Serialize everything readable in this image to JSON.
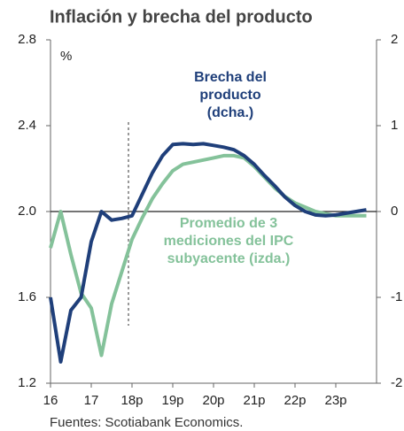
{
  "chart_data": {
    "type": "line",
    "title": "Inflación y brecha del producto",
    "y_unit": "%",
    "source": "Fuentes: Scotiabank Economics.",
    "x": [
      2016,
      2016.25,
      2016.5,
      2016.75,
      2017,
      2017.25,
      2017.5,
      2017.75,
      2018,
      2018.25,
      2018.5,
      2018.75,
      2019,
      2019.25,
      2019.5,
      2019.75,
      2020,
      2020.25,
      2020.5,
      2020.75,
      2021,
      2021.25,
      2021.5,
      2021.75,
      2022,
      2022.25,
      2022.5,
      2022.75,
      2023,
      2023.25,
      2023.5,
      2023.75
    ],
    "xlim": [
      2016,
      2024
    ],
    "xticks": [
      {
        "value": 2016,
        "label": "16"
      },
      {
        "value": 2017,
        "label": "17"
      },
      {
        "value": 2018,
        "label": "18p"
      },
      {
        "value": 2019,
        "label": "19p"
      },
      {
        "value": 2020,
        "label": "20p"
      },
      {
        "value": 2021,
        "label": "21p"
      },
      {
        "value": 2022,
        "label": "22p"
      },
      {
        "value": 2023,
        "label": "23p"
      }
    ],
    "ylim": [
      1.2,
      2.8
    ],
    "yticks": [
      1.2,
      1.6,
      {
        "value": 2,
        "label": "2.0"
      },
      2.4,
      2.8
    ],
    "y2lim": [
      -2,
      2
    ],
    "y2ticks": [
      -2,
      -1,
      0,
      1,
      2
    ],
    "series": [
      {
        "name": [
          "Promedio de 3",
          "mediciones del IPC",
          "subyacente (izda.)"
        ],
        "color": "#84c29a",
        "axis": "y",
        "values": [
          1.83,
          2.0,
          1.8,
          1.62,
          1.55,
          1.33,
          1.57,
          1.72,
          1.87,
          1.97,
          2.06,
          2.13,
          2.19,
          2.22,
          2.23,
          2.24,
          2.25,
          2.26,
          2.26,
          2.25,
          2.21,
          2.16,
          2.11,
          2.07,
          2.04,
          2.02,
          2.0,
          1.99,
          1.98,
          1.98,
          1.98,
          1.98
        ]
      },
      {
        "name": [
          "Brecha del",
          "producto",
          "(dcha.)"
        ],
        "color": "#1f3f7a",
        "axis": "y2",
        "values": [
          -1.0,
          -1.75,
          -1.15,
          -1.0,
          -0.35,
          0.0,
          -0.1,
          -0.08,
          -0.05,
          0.2,
          0.45,
          0.65,
          0.78,
          0.79,
          0.78,
          0.79,
          0.77,
          0.75,
          0.72,
          0.65,
          0.55,
          0.42,
          0.3,
          0.17,
          0.07,
          0.0,
          -0.04,
          -0.05,
          -0.04,
          -0.02,
          0.0,
          0.02
        ]
      }
    ]
  }
}
